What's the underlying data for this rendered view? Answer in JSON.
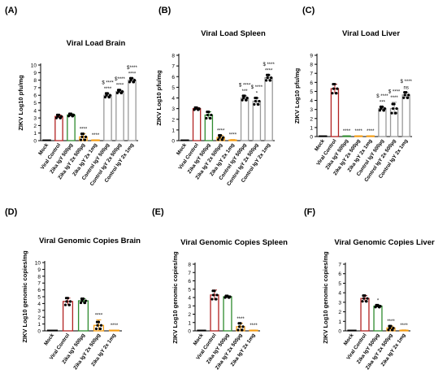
{
  "colors": {
    "mock": "#000000",
    "viral_control": "#b22222",
    "green": "#2e8b2e",
    "orange": "#f39c12",
    "grey": "#999999",
    "axis": "#000000"
  },
  "chart_data": [
    {
      "panel": "(A)",
      "type": "bar",
      "title": "Viral Load Brain",
      "ylabel": "ZIKV Log10 pfu/mg",
      "ylim": [
        0,
        10
      ],
      "yticks": [
        0,
        1,
        2,
        3,
        4,
        5,
        6,
        7,
        8,
        9,
        10
      ],
      "categories": [
        "Mock",
        "Viral Control",
        "Zika IgY 500µg",
        "Zika IgY 2x 500µg",
        "Zika IgY 2x 1mg",
        "Control IgY 500µg",
        "Control IgY 2x 500µg",
        "Control IgY 2x 1mg"
      ],
      "values": [
        0,
        3.2,
        3.4,
        0.5,
        0.05,
        6.0,
        6.5,
        8.0
      ],
      "errors": [
        0,
        0.2,
        0.15,
        0.4,
        0.05,
        0.25,
        0.2,
        0.25
      ],
      "annotations": [
        "",
        "",
        "",
        "****",
        "****",
        "$ ****\n****",
        "$****\n****",
        "$****\n****"
      ]
    },
    {
      "panel": "(B)",
      "type": "bar",
      "title": "Viral Load Spleen",
      "ylabel": "ZIKV Log10 pfu/mg",
      "ylim": [
        0,
        8
      ],
      "yticks": [
        0,
        1,
        2,
        3,
        4,
        5,
        6,
        7,
        8
      ],
      "categories": [
        "Mock",
        "Viral Control",
        "Zika IgY 500µg",
        "Zika IgY 2x 500µg",
        "Zika IgY 2x 1mg",
        "Control IgY 500µg",
        "Control IgY 2x 500µg",
        "Control IgY 2x 1mg"
      ],
      "values": [
        0,
        3.0,
        2.4,
        0.3,
        0.05,
        4.0,
        3.7,
        5.9
      ],
      "errors": [
        0,
        0.1,
        0.3,
        0.2,
        0.05,
        0.2,
        0.3,
        0.25
      ],
      "annotations": [
        "",
        "",
        "",
        "****",
        "****",
        "$ ****\n***",
        "$ ****\n*",
        "$ ****\n****"
      ]
    },
    {
      "panel": "(C)",
      "type": "bar",
      "title": "Viral Load Liver",
      "ylabel": "ZIKV Log10 pfu/mg",
      "ylim": [
        0,
        9
      ],
      "yticks": [
        0,
        1,
        2,
        3,
        4,
        5,
        6,
        7,
        8,
        9
      ],
      "categories": [
        "Mock",
        "Viral Control",
        "Zika IgY 500µg",
        "Zika IgY 2x 500µg",
        "Zika IgY 2x 1mg",
        "Control IgY 500µg",
        "Control IgY 2x 500µg",
        "Control IgY 2x 1mg"
      ],
      "values": [
        0,
        5.3,
        0.05,
        0.05,
        0.05,
        3.1,
        3.1,
        4.6
      ],
      "errors": [
        0,
        0.5,
        0.02,
        0.02,
        0.02,
        0.2,
        0.7,
        0.3
      ],
      "annotations": [
        "",
        "",
        "****",
        "****",
        "****",
        "$ ****\n***",
        "$ ****\n****",
        "$ ****\nns"
      ]
    },
    {
      "panel": "(D)",
      "type": "bar",
      "title": "Viral Genomic Copies Brain",
      "ylabel": "ZIKV Log10 genomic copies/mg",
      "ylim": [
        0,
        10
      ],
      "yticks": [
        0,
        1,
        2,
        3,
        4,
        5,
        6,
        7,
        8,
        9,
        10
      ],
      "categories": [
        "Mock",
        "Viral Control",
        "Zika IgY 500µg",
        "Zika IgY 2x 500µg",
        "Zika IgY 2x 1mg"
      ],
      "values": [
        0,
        4.3,
        4.4,
        0.8,
        0.05
      ],
      "errors": [
        0,
        0.5,
        0.3,
        0.8,
        0.05
      ],
      "annotations": [
        "",
        "",
        "",
        "****",
        "****"
      ]
    },
    {
      "panel": "(E)",
      "type": "bar",
      "title": "Viral Genomic Copies Spleen",
      "ylabel": "ZIKV Log10 genomic copies/mg",
      "ylim": [
        0,
        8
      ],
      "yticks": [
        0,
        1,
        2,
        3,
        4,
        5,
        6,
        7,
        8
      ],
      "categories": [
        "Mock",
        "Viral Control",
        "Zika IgY 500µg",
        "Zika IgY 2x 500µg",
        "Zika IgY 2x 1mg"
      ],
      "values": [
        0,
        4.3,
        4.1,
        0.5,
        0.05
      ],
      "errors": [
        0,
        0.6,
        0.1,
        0.4,
        0.05
      ],
      "annotations": [
        "",
        "",
        "",
        "****",
        "****"
      ]
    },
    {
      "panel": "(F)",
      "type": "bar",
      "title": "Viral Genomic Copies Liver",
      "ylabel": "ZIKV Log10 genomic copies/mg",
      "ylim": [
        0,
        7
      ],
      "yticks": [
        0,
        1,
        2,
        3,
        4,
        5,
        6,
        7
      ],
      "categories": [
        "Mock",
        "Viral Control",
        "Zika IgY 500µg",
        "Zika IgY 2x 500µg",
        "Zika IgY 2x 1mg"
      ],
      "values": [
        0,
        3.4,
        2.6,
        0.3,
        0.05
      ],
      "errors": [
        0,
        0.3,
        0.1,
        0.2,
        0.05
      ],
      "annotations": [
        "",
        "",
        "*",
        "****",
        "****"
      ]
    }
  ]
}
